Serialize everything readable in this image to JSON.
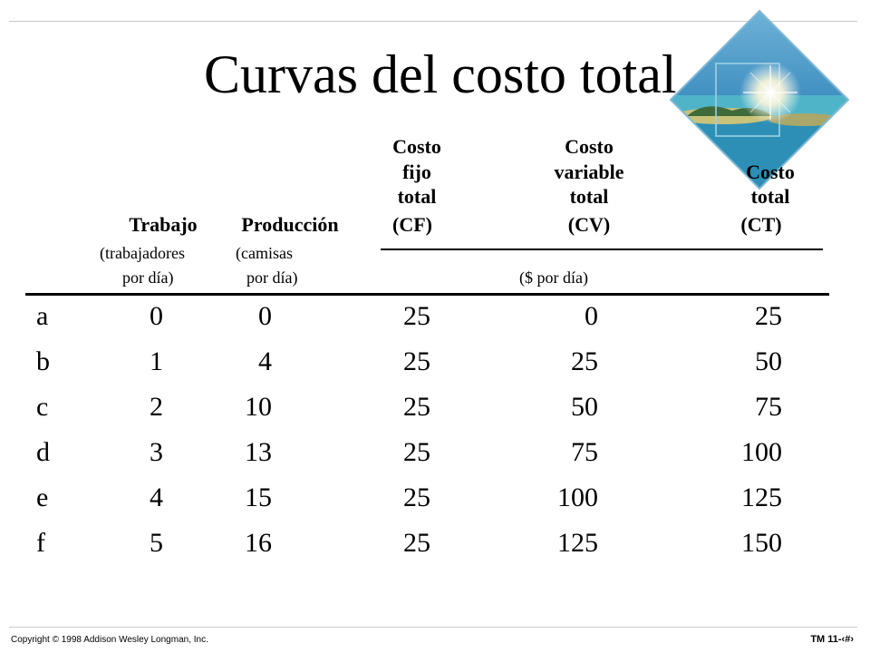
{
  "slide": {
    "title": "Curvas del costo total",
    "image_icon": "tropical-island-diamond-image"
  },
  "table": {
    "headers": {
      "cf_line1": "Costo",
      "cf_line2": "fijo",
      "cf_line3": "total",
      "cf_abbr": "(CF)",
      "cv_line1": "Costo",
      "cv_line2": "variable",
      "cv_line3": "total",
      "cv_abbr": "(CV)",
      "ct_line1": "Costo",
      "ct_line2": "total",
      "ct_abbr": "(CT)",
      "trabajo": "Trabajo",
      "produccion": "Producción",
      "trabajo_sub1": "(trabajadores",
      "trabajo_sub2": "por día)",
      "produccion_sub1": "(camisas",
      "produccion_sub2": "por día)",
      "cost_units": "($ por día)"
    },
    "rows": [
      {
        "letter": "a",
        "trabajo": "0",
        "produccion": "0",
        "cf": "25",
        "cv": "0",
        "ct": "25"
      },
      {
        "letter": "b",
        "trabajo": "1",
        "produccion": "4",
        "cf": "25",
        "cv": "25",
        "ct": "50"
      },
      {
        "letter": "c",
        "trabajo": "2",
        "produccion": "10",
        "cf": "25",
        "cv": "50",
        "ct": "75"
      },
      {
        "letter": "d",
        "trabajo": "3",
        "produccion": "13",
        "cf": "25",
        "cv": "75",
        "ct": "100"
      },
      {
        "letter": "e",
        "trabajo": "4",
        "produccion": "15",
        "cf": "25",
        "cv": "100",
        "ct": "125"
      },
      {
        "letter": "f",
        "trabajo": "5",
        "produccion": "16",
        "cf": "25",
        "cv": "125",
        "ct": "150"
      }
    ]
  },
  "footer": {
    "copyright": "Copyright © 1998 Addison Wesley Longman, Inc.",
    "slide_number": "TM 11-‹#›"
  }
}
